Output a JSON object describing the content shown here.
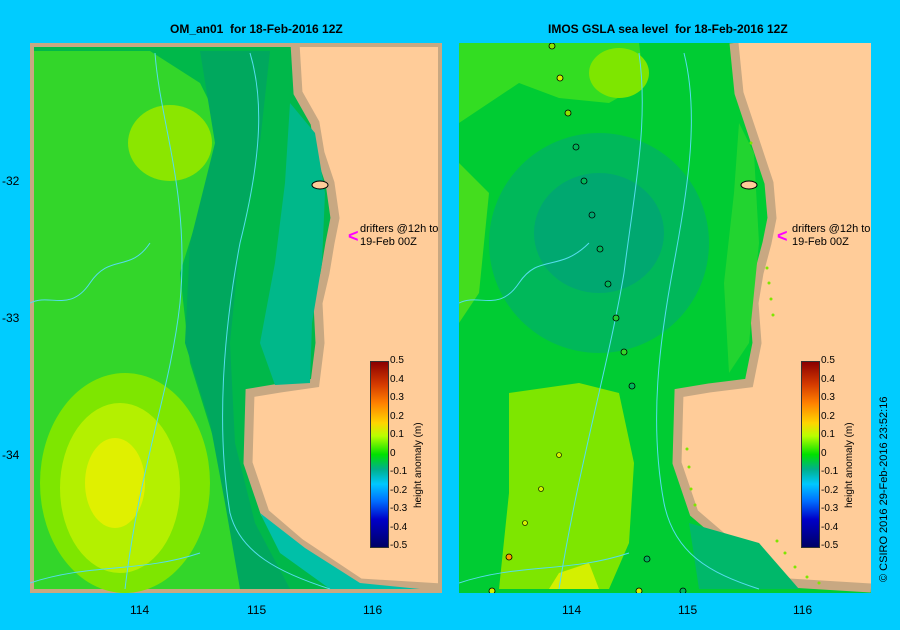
{
  "panels": {
    "left": {
      "title": "OM_an01  for 18-Feb-2016 12Z"
    },
    "right": {
      "title": "IMOS GSLA sea level  for 18-Feb-2016 12Z"
    }
  },
  "axes": {
    "y_ticks": [
      "-32",
      "-33",
      "-34"
    ],
    "x_ticks": [
      "114",
      "115",
      "116"
    ]
  },
  "drifters_note": {
    "line1": "drifters @12h to",
    "line2": "19-Feb 00Z"
  },
  "colorbar": {
    "title": "height anomaly (m)",
    "labels": [
      "0.5",
      "0.4",
      "0.3",
      "0.2",
      "0.1",
      "0",
      "-0.1",
      "-0.2",
      "-0.3",
      "-0.4",
      "-0.5"
    ]
  },
  "copyright": "© CSIRO 2016   29-Feb-2016 23:52:16",
  "colors": {
    "background": "#00ccff",
    "land": "#ffcc99",
    "coast": "#c8a882",
    "contour": "#55ddee",
    "drifter_arrow": "#ff00ff"
  }
}
